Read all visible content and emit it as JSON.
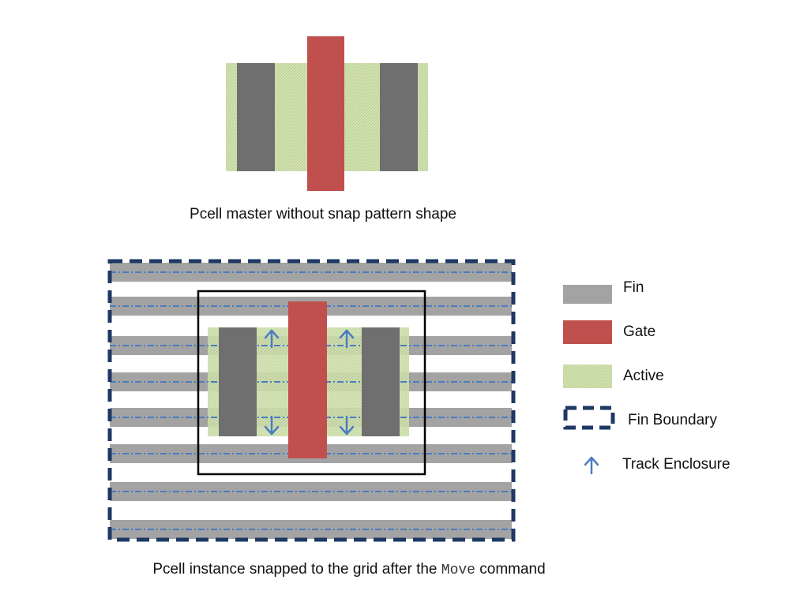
{
  "top": {
    "caption": "Pcell master without snap pattern shape"
  },
  "bottom": {
    "caption_prefix": "Pcell instance snapped to the grid after the ",
    "caption_code": "Move",
    "caption_suffix": " command"
  },
  "legend": [
    {
      "key": "fin",
      "label": "Fin",
      "color": "#a3a3a3"
    },
    {
      "key": "gate",
      "label": "Gate",
      "color": "#c0504d"
    },
    {
      "key": "active",
      "label": "Active",
      "color": "#c6d9a0"
    },
    {
      "key": "boundary",
      "label": "Fin Boundary",
      "color": "#1f3864"
    },
    {
      "key": "track",
      "label": "Track Enclosure",
      "color": "#4a7cc0"
    }
  ],
  "colors": {
    "fin": "#a3a3a3",
    "source_drain": "#6f6f6f",
    "gate": "#c0504d",
    "active": "#c6d9a0",
    "boundary": "#1f3864",
    "track": "#4a7cc0",
    "outline": "#000000"
  }
}
